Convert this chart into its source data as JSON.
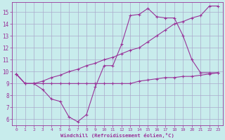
{
  "bg_color": "#c8ecec",
  "grid_color": "#aaaacc",
  "line_color": "#993399",
  "xlabel": "Windchill (Refroidissement éolien,°C)",
  "xlabel_color": "#993399",
  "tick_color": "#993399",
  "xlim": [
    -0.5,
    23.5
  ],
  "ylim": [
    5.5,
    15.8
  ],
  "yticks": [
    6,
    7,
    8,
    9,
    10,
    11,
    12,
    13,
    14,
    15
  ],
  "xticks": [
    0,
    1,
    2,
    3,
    4,
    5,
    6,
    7,
    8,
    9,
    10,
    11,
    12,
    13,
    14,
    15,
    16,
    17,
    18,
    19,
    20,
    21,
    22,
    23
  ],
  "line1_x": [
    0,
    1,
    2,
    3,
    4,
    5,
    6,
    7,
    8,
    9,
    10,
    11,
    12,
    13,
    14,
    15,
    16,
    17,
    18,
    19,
    20,
    21,
    22,
    23
  ],
  "line1_y": [
    9.8,
    9.0,
    9.0,
    9.2,
    9.5,
    9.7,
    10.0,
    10.2,
    10.5,
    10.7,
    11.0,
    11.2,
    11.5,
    11.8,
    12.0,
    12.5,
    13.0,
    13.5,
    14.0,
    14.2,
    14.5,
    14.7,
    15.5,
    15.5
  ],
  "line2_x": [
    0,
    1,
    2,
    3,
    4,
    5,
    6,
    7,
    8,
    9,
    10,
    11,
    12,
    13,
    14,
    15,
    16,
    17,
    18,
    19,
    20,
    21,
    22,
    23
  ],
  "line2_y": [
    9.8,
    9.0,
    9.0,
    8.5,
    7.7,
    7.5,
    6.2,
    5.8,
    6.4,
    8.7,
    10.5,
    10.5,
    12.3,
    14.7,
    14.8,
    15.3,
    14.6,
    14.5,
    14.5,
    13.0,
    11.0,
    9.9,
    9.9,
    9.9
  ],
  "line3_x": [
    0,
    1,
    2,
    3,
    4,
    5,
    6,
    7,
    8,
    9,
    10,
    11,
    12,
    13,
    14,
    15,
    16,
    17,
    18,
    19,
    20,
    21,
    22,
    23
  ],
  "line3_y": [
    9.8,
    9.0,
    9.0,
    9.0,
    9.0,
    9.0,
    9.0,
    9.0,
    9.0,
    9.0,
    9.0,
    9.0,
    9.0,
    9.0,
    9.2,
    9.3,
    9.4,
    9.5,
    9.5,
    9.6,
    9.6,
    9.7,
    9.8,
    9.9
  ]
}
